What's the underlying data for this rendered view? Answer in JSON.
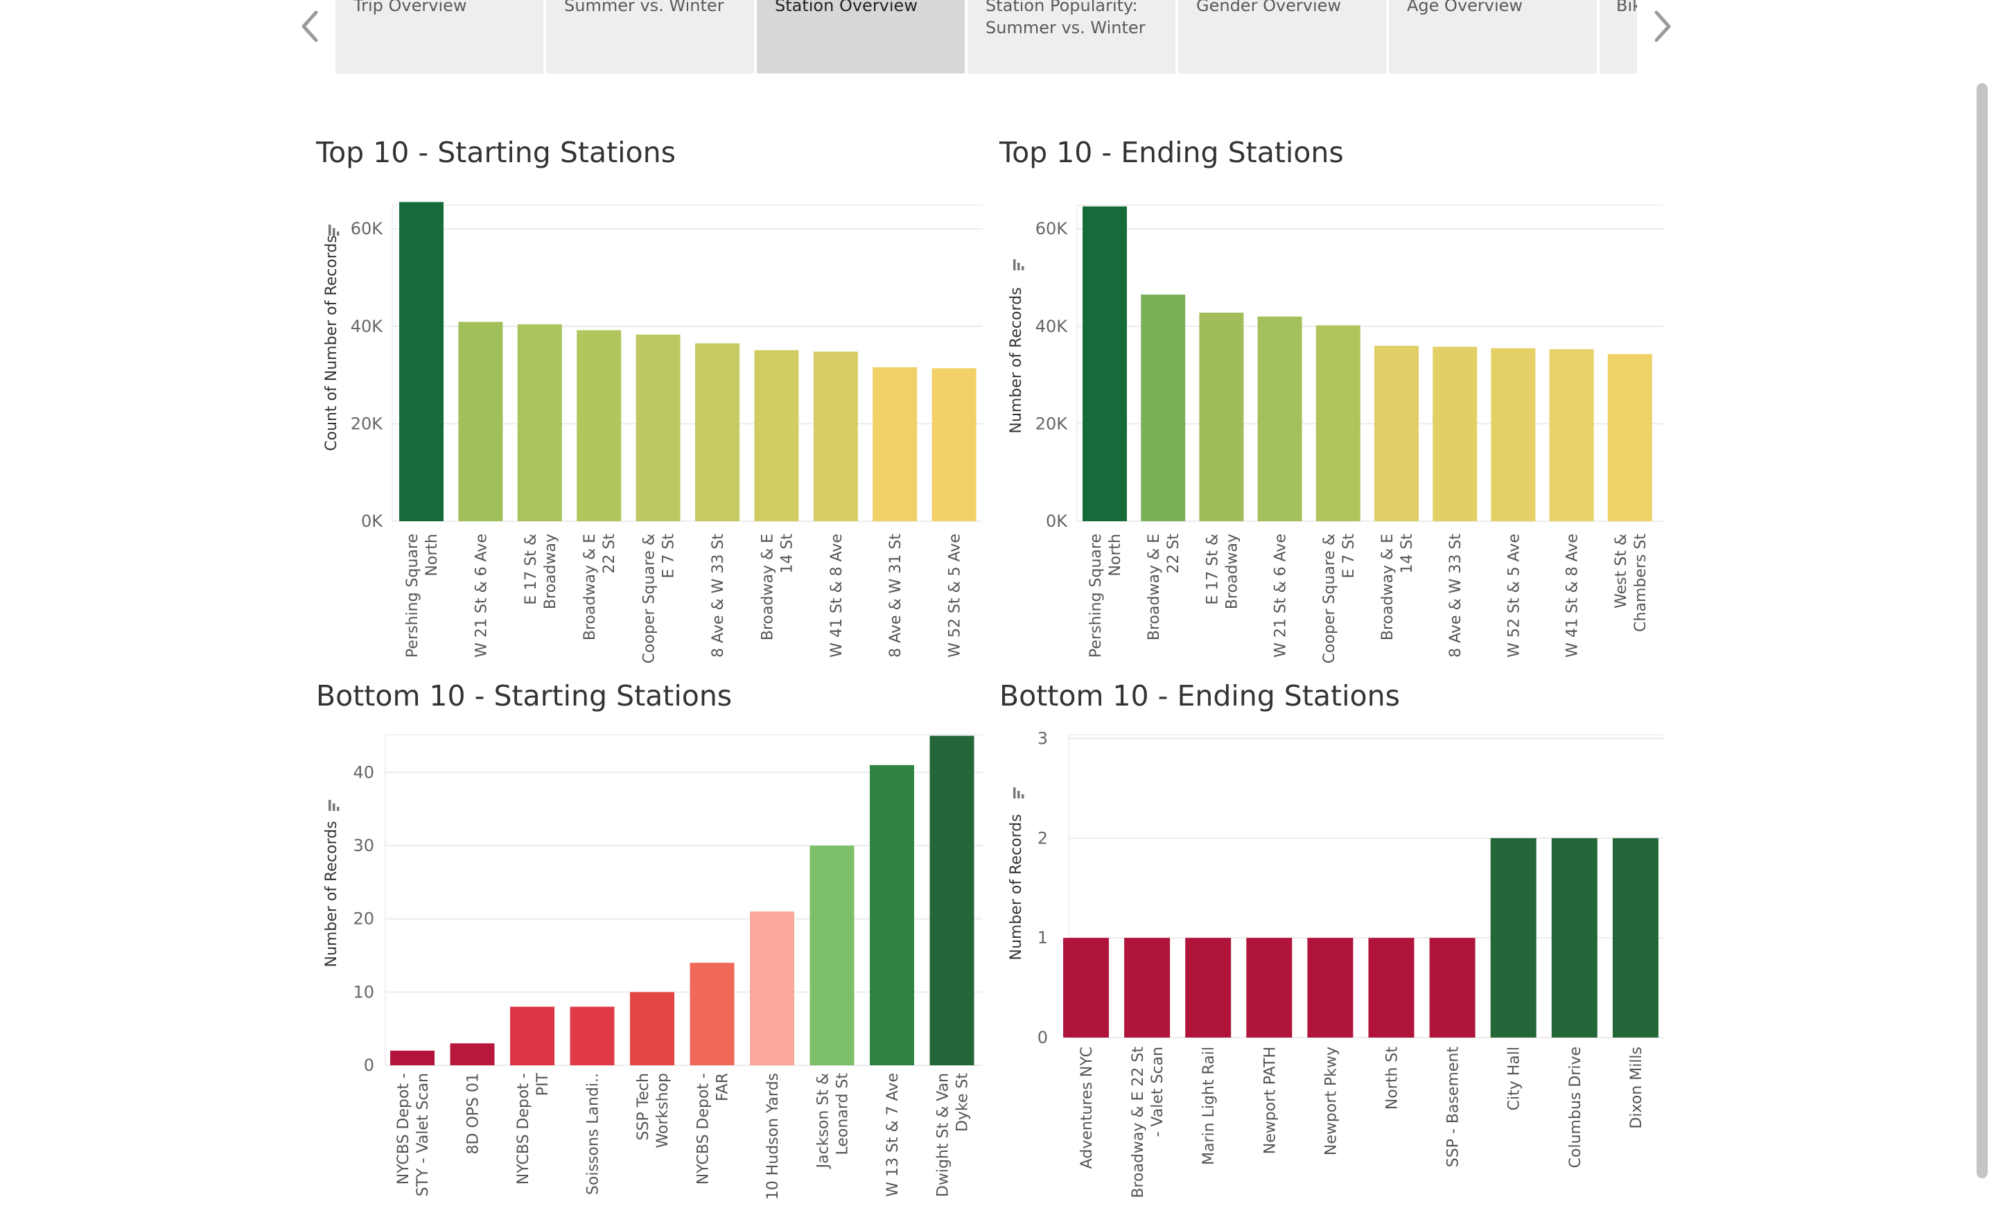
{
  "tabs": [
    {
      "label": "Trip Overview",
      "active": false
    },
    {
      "label": "Summer vs. Winter",
      "active": false
    },
    {
      "label": "Station Overview",
      "active": true
    },
    {
      "label": "Station Popularity:\nSummer vs. Winter",
      "active": false
    },
    {
      "label": "Gender Overview",
      "active": false
    },
    {
      "label": "Age Overview",
      "active": false
    },
    {
      "label": "Bik",
      "active": false
    }
  ],
  "nav": {
    "prev_icon": "chevron-left-icon",
    "next_icon": "chevron-right-icon"
  },
  "chart_data": [
    {
      "type": "bar",
      "title": "Top 10 - Starting Stations",
      "ylabel": "Count of Number of Records",
      "ylim": [
        0,
        65000
      ],
      "yticks": [
        0,
        20000,
        40000,
        60000
      ],
      "ytick_labels": [
        "0K",
        "20K",
        "40K",
        "60K"
      ],
      "categories": [
        "Pershing Square\nNorth",
        "W 21 St & 6 Ave",
        "E 17 St &\nBroadway",
        "Broadway & E\n22 St",
        "Cooper Square &\nE 7 St",
        "8 Ave & W 33 St",
        "Broadway & E\n14 St",
        "W 41 St & 8 Ave",
        "8 Ave & W 31 St",
        "W 52 St & 5 Ave"
      ],
      "values": [
        65500,
        40900,
        40400,
        39200,
        38300,
        36500,
        35100,
        34800,
        31600,
        31400
      ],
      "colors": [
        "#156b39",
        "#a2c05a",
        "#a8c45b",
        "#b1c65d",
        "#bdc860",
        "#c7ca62",
        "#d2cc64",
        "#d7cc65",
        "#efd166",
        "#f2d268"
      ]
    },
    {
      "type": "bar",
      "title": "Top 10 - Ending Stations",
      "ylabel": "Number of Records",
      "ylim": [
        0,
        65000
      ],
      "yticks": [
        0,
        20000,
        40000,
        60000
      ],
      "ytick_labels": [
        "0K",
        "20K",
        "40K",
        "60K"
      ],
      "categories": [
        "Pershing Square\nNorth",
        "Broadway & E\n22 St",
        "E 17 St &\nBroadway",
        "W 21 St & 6 Ave",
        "Cooper Square &\nE 7 St",
        "Broadway & E\n14 St",
        "8 Ave & W 33 St",
        "W 52 St & 5 Ave",
        "W 41 St & 8 Ave",
        "West St &\nChambers St"
      ],
      "values": [
        64600,
        46500,
        42800,
        42000,
        40200,
        36000,
        35800,
        35500,
        35300,
        34300
      ],
      "colors": [
        "#156b39",
        "#7ab158",
        "#a0bd5a",
        "#a4c05b",
        "#b0c45c",
        "#e0cf66",
        "#e2d066",
        "#e5d066",
        "#e8d167",
        "#eed268"
      ]
    },
    {
      "type": "bar",
      "title": "Bottom 10 - Starting Stations",
      "ylabel": "Number of Records",
      "ylim": [
        0,
        46
      ],
      "yticks": [
        0,
        10,
        20,
        30,
        40
      ],
      "ytick_labels": [
        "0",
        "10",
        "20",
        "30",
        "40"
      ],
      "categories": [
        "NYCBS Depot -\nSTY - Valet Scan",
        "8D OPS 01",
        "NYCBS Depot -\nPIT",
        "Soissons Landi..",
        "SSP Tech\nWorkshop",
        "NYCBS Depot -\nFAR",
        "10 Hudson Yards",
        "Jackson St &\nLeonard St",
        "W 13 St & 7 Ave",
        "Dwight St & Van\nDyke St"
      ],
      "values": [
        2,
        3,
        8,
        8,
        10,
        14,
        21,
        30,
        41,
        45
      ],
      "colors": [
        "#b2143b",
        "#b8183c",
        "#dc3442",
        "#df3a45",
        "#e44646",
        "#f06858",
        "#fba89a",
        "#7bbf6b",
        "#2f8442",
        "#236638"
      ]
    },
    {
      "type": "bar",
      "title": "Bottom 10 - Ending Stations",
      "ylabel": "Number of Records",
      "ylim": [
        0,
        3.1
      ],
      "yticks": [
        0,
        1,
        2,
        3
      ],
      "ytick_labels": [
        "0",
        "1",
        "2",
        "3"
      ],
      "categories": [
        "Adventures NYC",
        "Broadway & E 22 St\n- Valet Scan",
        "Marin Light Rail",
        "Newport PATH",
        "Newport Pkwy",
        "North St",
        "SSP - Basement",
        "City Hall",
        "Columbus Drive",
        "Dixon Mills"
      ],
      "values": [
        1,
        1,
        1,
        1,
        1,
        1,
        1,
        2,
        2,
        2
      ],
      "colors": [
        "#b0143a",
        "#b0143a",
        "#b0143a",
        "#b0143a",
        "#b0143a",
        "#b0143a",
        "#b0143a",
        "#236638",
        "#236638",
        "#236638"
      ]
    }
  ]
}
